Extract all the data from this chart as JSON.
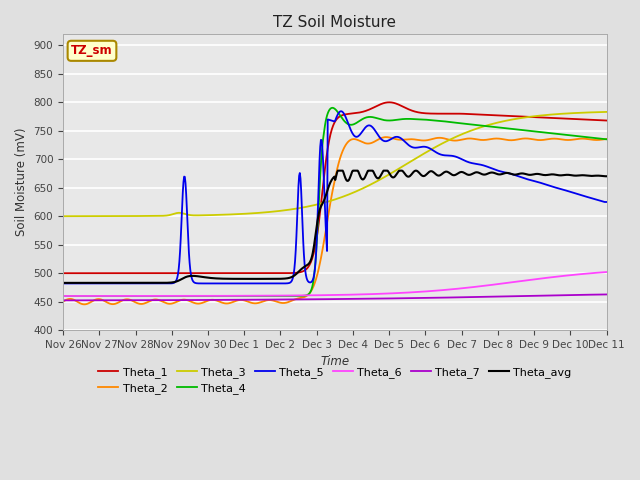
{
  "title": "TZ Soil Moisture",
  "xlabel": "Time",
  "ylabel": "Soil Moisture (mV)",
  "ylim": [
    400,
    920
  ],
  "yticks": [
    400,
    450,
    500,
    550,
    600,
    650,
    700,
    750,
    800,
    850,
    900
  ],
  "xtick_labels": [
    "Nov 26",
    "Nov 27",
    "Nov 28",
    "Nov 29",
    "Nov 30",
    "Dec 1",
    "Dec 2",
    "Dec 3",
    "Dec 4",
    "Dec 5",
    "Dec 6",
    "Dec 7",
    "Dec 8",
    "Dec 9",
    "Dec 10",
    "Dec 11"
  ],
  "series_colors": {
    "Theta_1": "#cc0000",
    "Theta_2": "#ff8800",
    "Theta_3": "#cccc00",
    "Theta_4": "#00bb00",
    "Theta_5": "#0000ee",
    "Theta_6": "#ff44ff",
    "Theta_7": "#aa00cc",
    "Theta_avg": "#000000"
  },
  "legend_label": "TZ_sm",
  "legend_label_color": "#cc0000",
  "legend_box_facecolor": "#ffffcc",
  "legend_box_edgecolor": "#aa8800",
  "bg_color": "#e0e0e0",
  "plot_bg_color": "#e8e8e8",
  "grid_color": "#ffffff"
}
